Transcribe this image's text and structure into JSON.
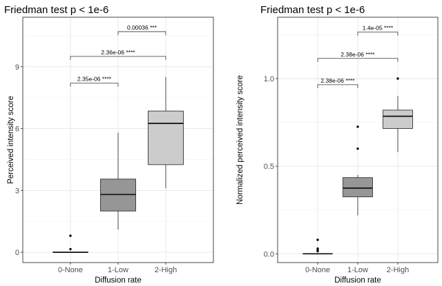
{
  "chart_data": [
    {
      "type": "box",
      "title": "Friedman test p < 1e-6",
      "xlabel": "Diffusion rate",
      "ylabel": "Perceived intensity score",
      "categories": [
        "0-None",
        "1-Low",
        "2-High"
      ],
      "ylim": [
        -0.5,
        11.4
      ],
      "yticks": [
        0,
        3,
        6,
        9
      ],
      "ytick_labels": [
        "0",
        "3",
        "6",
        "9"
      ],
      "box_colors": [
        "#4a4a4a",
        "#969696",
        "#cccccc"
      ],
      "boxes": [
        {
          "category": "0-None",
          "whisker_low": 0,
          "q1": 0,
          "median": 0,
          "q3": 0,
          "whisker_high": 0,
          "outliers": [
            0.8,
            0.15
          ]
        },
        {
          "category": "1-Low",
          "whisker_low": 1.1,
          "q1": 2.0,
          "median": 2.8,
          "q3": 3.55,
          "whisker_high": 5.8,
          "outliers": []
        },
        {
          "category": "2-High",
          "whisker_low": 3.1,
          "q1": 4.25,
          "median": 6.25,
          "q3": 6.85,
          "whisker_high": 8.5,
          "outliers": []
        }
      ],
      "grid": true,
      "annotations": [
        {
          "from": 0,
          "to": 1,
          "y": 8.2,
          "label": "2.35e-06 ****"
        },
        {
          "from": 0,
          "to": 2,
          "y": 9.5,
          "label": "2.36e-06 ****"
        },
        {
          "from": 1,
          "to": 2,
          "y": 10.7,
          "label": "0.00036 ***"
        }
      ]
    },
    {
      "type": "box",
      "title": "Friedman test p < 1e-6",
      "xlabel": "Diffusion rate",
      "ylabel": "Normalized perceived intensity score",
      "categories": [
        "0-None",
        "1-Low",
        "2-High"
      ],
      "ylim": [
        -0.05,
        1.35
      ],
      "yticks": [
        0,
        0.5,
        1.0
      ],
      "ytick_labels": [
        "0.0",
        "0.5",
        "1.0"
      ],
      "box_colors": [
        "#4a4a4a",
        "#969696",
        "#cccccc"
      ],
      "boxes": [
        {
          "category": "0-None",
          "whisker_low": 0,
          "q1": 0,
          "median": 0,
          "q3": 0,
          "whisker_high": 0,
          "outliers": [
            0.08,
            0.03,
            0.02,
            0.015
          ]
        },
        {
          "category": "1-Low",
          "whisker_low": 0.22,
          "q1": 0.325,
          "median": 0.375,
          "q3": 0.435,
          "whisker_high": 0.45,
          "outliers": [
            0.725,
            0.6
          ]
        },
        {
          "category": "2-High",
          "whisker_low": 0.58,
          "q1": 0.715,
          "median": 0.785,
          "q3": 0.82,
          "whisker_high": 0.9,
          "outliers": [
            1.0
          ]
        }
      ],
      "grid": true,
      "annotations": [
        {
          "from": 0,
          "to": 1,
          "y": 0.965,
          "label": "2.38e-06 ****"
        },
        {
          "from": 0,
          "to": 2,
          "y": 1.115,
          "label": "2.38e-06 ****"
        },
        {
          "from": 1,
          "to": 2,
          "y": 1.265,
          "label": "1.4e-05 ****"
        }
      ]
    }
  ]
}
